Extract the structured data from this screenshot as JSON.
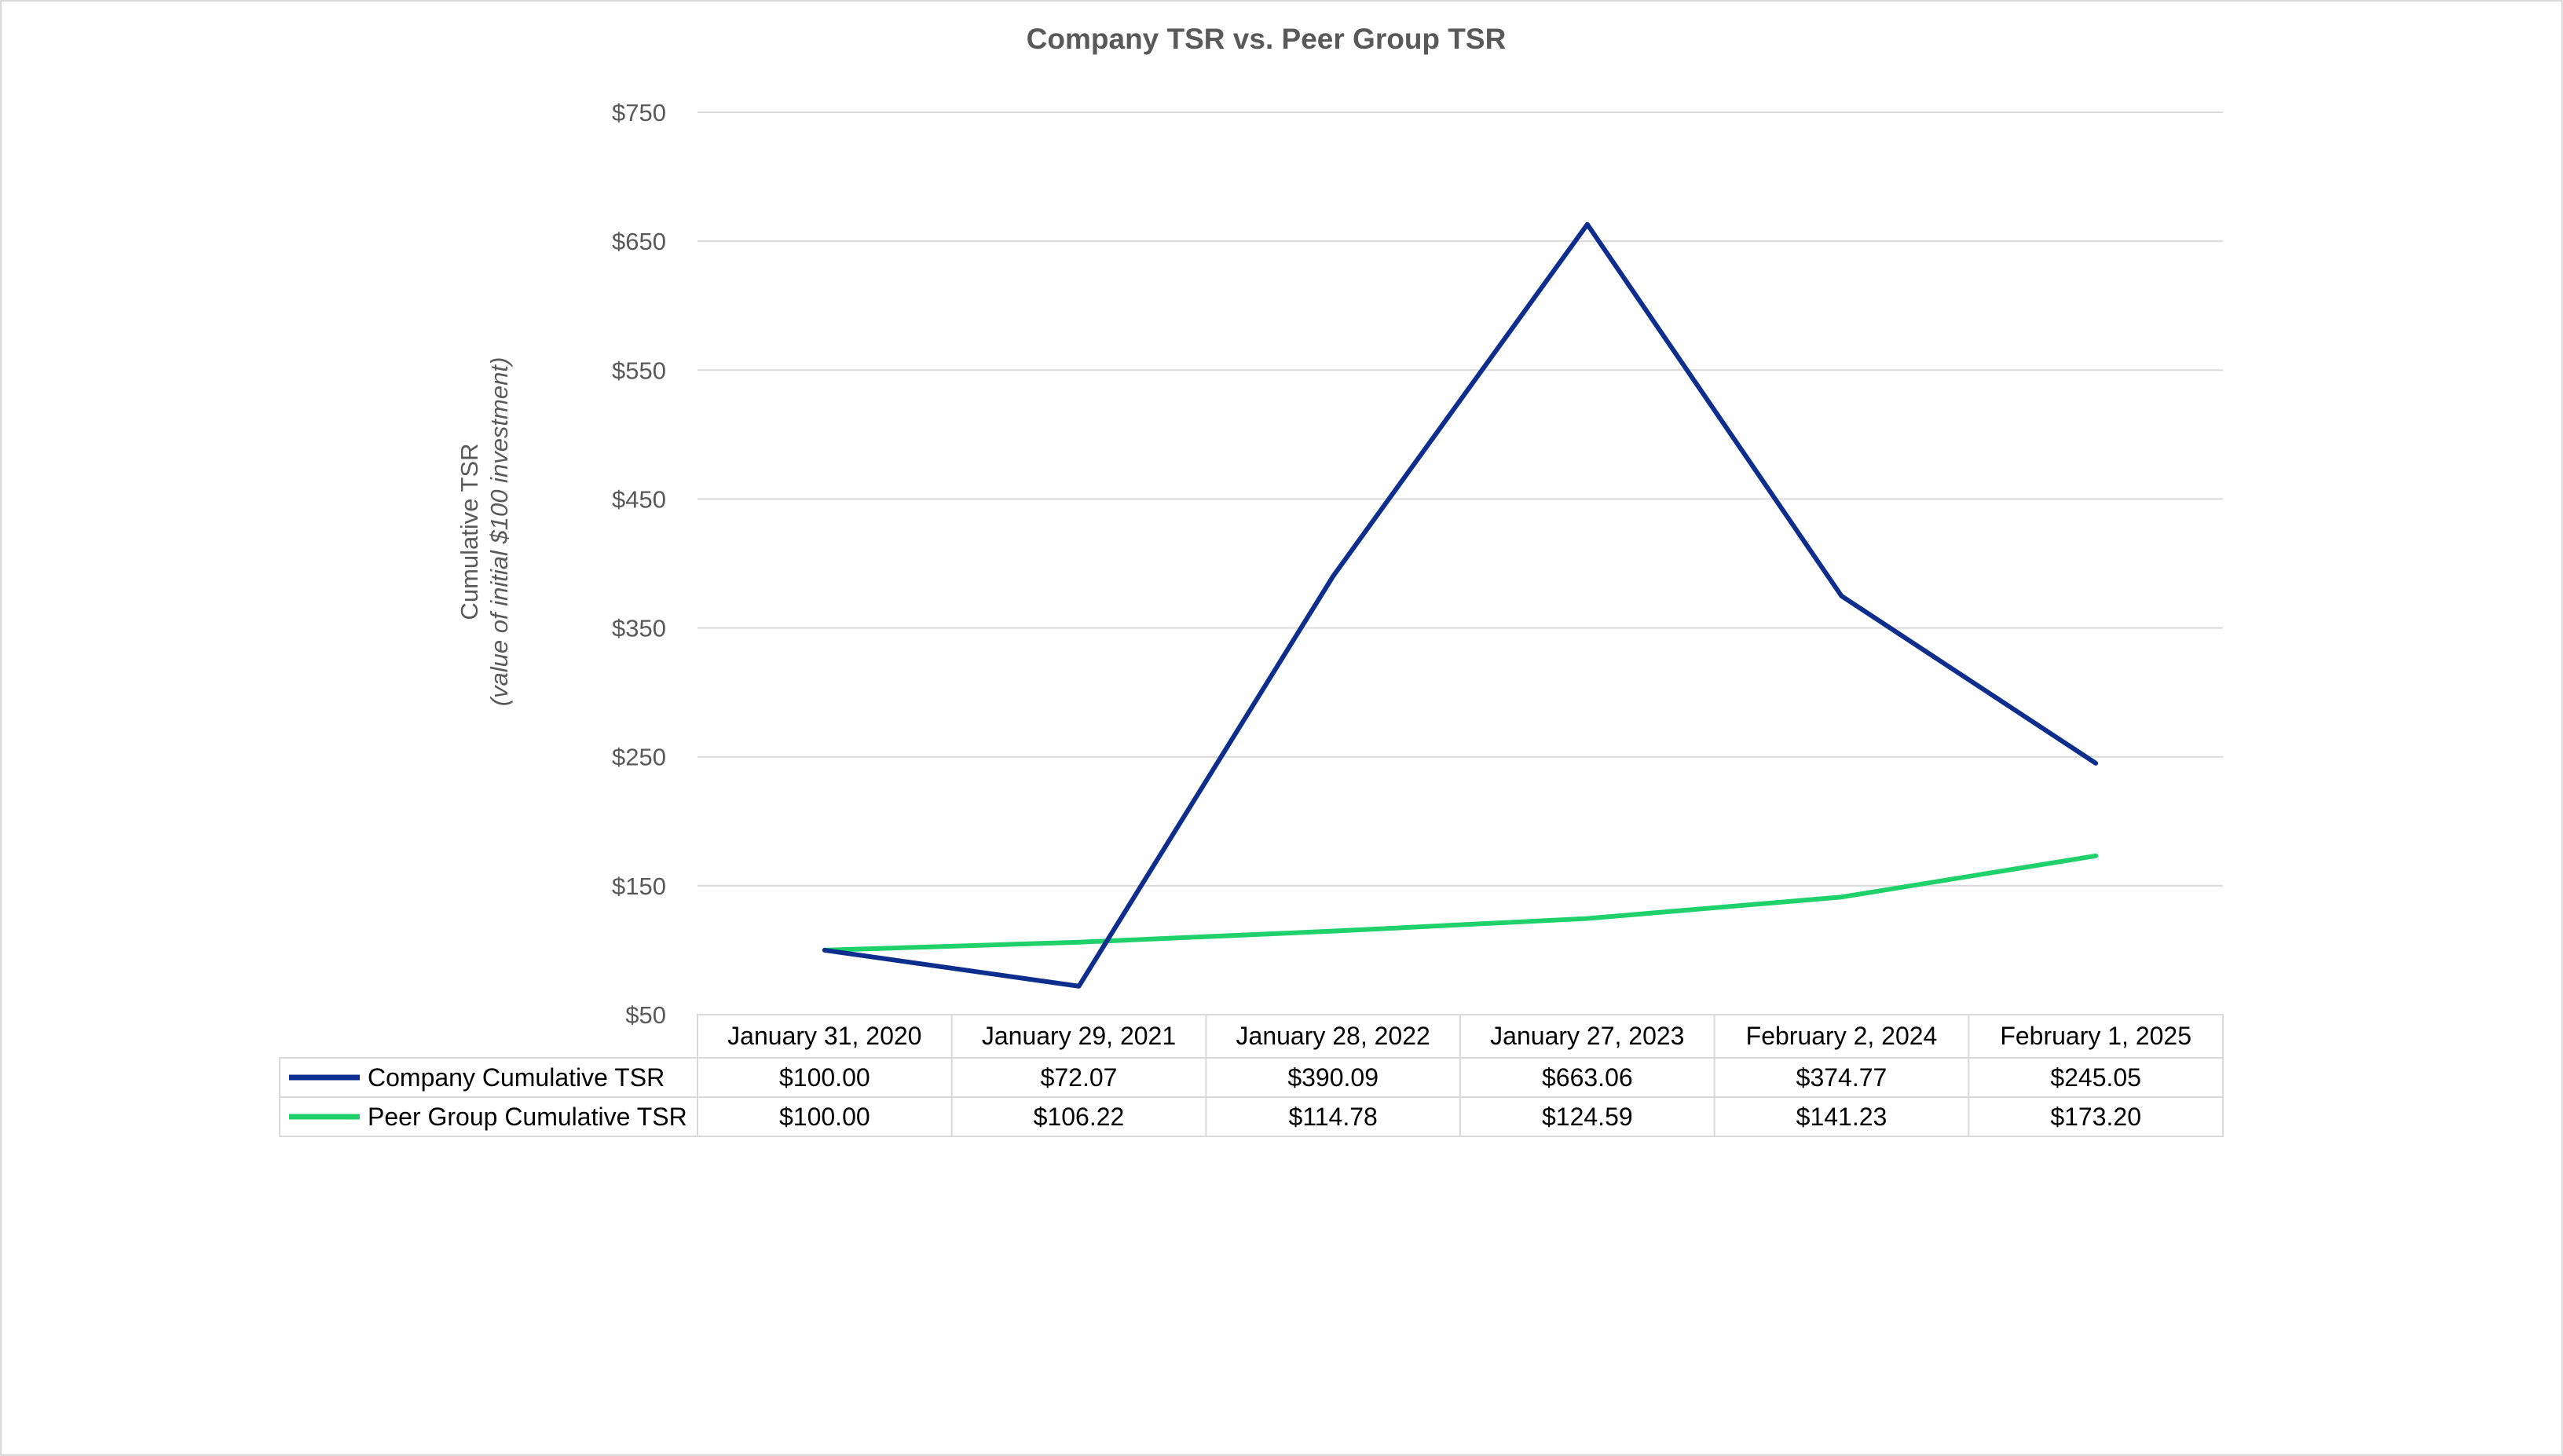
{
  "chart_data": {
    "type": "line",
    "title": "Company TSR vs. Peer Group TSR",
    "ylabel": "Cumulative  TSR",
    "ylabel_sub": "(value  of initial  $100 investment)",
    "ylim": [
      50,
      750
    ],
    "yticks": [
      50,
      150,
      250,
      350,
      450,
      550,
      650,
      750
    ],
    "ytick_labels": [
      "$50",
      "$150",
      "$250",
      "$350",
      "$450",
      "$550",
      "$650",
      "$750"
    ],
    "grid": true,
    "categories": [
      "January 31, 2020",
      "January 29, 2021",
      "January 28, 2022",
      "January 27, 2023",
      "February 2, 2024",
      "February 1, 2025"
    ],
    "series": [
      {
        "name": "Company Cumulative TSR",
        "color": "#0d2e8c",
        "values": [
          100.0,
          72.07,
          390.09,
          663.06,
          374.77,
          245.05
        ],
        "labels": [
          "$100.00",
          "$72.07",
          "$390.09",
          "$663.06",
          "$374.77",
          "$245.05"
        ]
      },
      {
        "name": "Peer Group Cumulative TSR",
        "color": "#1fd16a",
        "values": [
          100.0,
          106.22,
          114.78,
          124.59,
          141.23,
          173.2
        ],
        "labels": [
          "$100.00",
          "$106.22",
          "$114.78",
          "$124.59",
          "$141.23",
          "$173.20"
        ]
      }
    ],
    "legend": "data-table-left"
  }
}
